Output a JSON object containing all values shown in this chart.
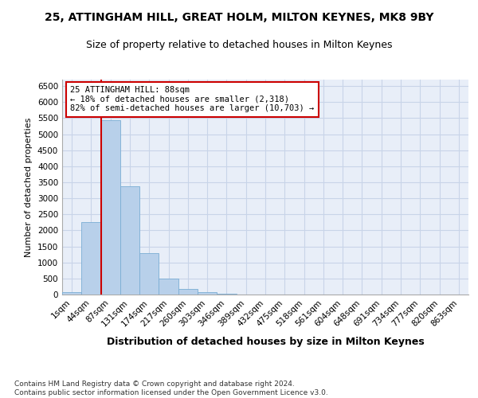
{
  "title": "25, ATTINGHAM HILL, GREAT HOLM, MILTON KEYNES, MK8 9BY",
  "subtitle": "Size of property relative to detached houses in Milton Keynes",
  "xlabel": "Distribution of detached houses by size in Milton Keynes",
  "ylabel": "Number of detached properties",
  "footer_line1": "Contains HM Land Registry data © Crown copyright and database right 2024.",
  "footer_line2": "Contains public sector information licensed under the Open Government Licence v3.0.",
  "bar_labels": [
    "1sqm",
    "44sqm",
    "87sqm",
    "131sqm",
    "174sqm",
    "217sqm",
    "260sqm",
    "303sqm",
    "346sqm",
    "389sqm",
    "432sqm",
    "475sqm",
    "518sqm",
    "561sqm",
    "604sqm",
    "648sqm",
    "691sqm",
    "734sqm",
    "777sqm",
    "820sqm",
    "863sqm"
  ],
  "bar_values": [
    70,
    2270,
    5430,
    3380,
    1300,
    490,
    185,
    80,
    30,
    0,
    0,
    0,
    0,
    0,
    0,
    0,
    0,
    0,
    0,
    0,
    0
  ],
  "bar_color": "#b8d0ea",
  "bar_edge_color": "#7aadd4",
  "grid_color": "#c8d4e8",
  "background_color": "#e8eef8",
  "vline_x": 1.5,
  "vline_color": "#cc0000",
  "annotation_text": "25 ATTINGHAM HILL: 88sqm\n← 18% of detached houses are smaller (2,318)\n82% of semi-detached houses are larger (10,703) →",
  "annotation_box_edgecolor": "#cc0000",
  "ylim": [
    0,
    6700
  ],
  "yticks": [
    0,
    500,
    1000,
    1500,
    2000,
    2500,
    3000,
    3500,
    4000,
    4500,
    5000,
    5500,
    6000,
    6500
  ],
  "fig_bg": "#ffffff",
  "title_fontsize": 10,
  "subtitle_fontsize": 9,
  "ylabel_fontsize": 8,
  "xlabel_fontsize": 9,
  "tick_fontsize": 7.5,
  "footer_fontsize": 6.5
}
